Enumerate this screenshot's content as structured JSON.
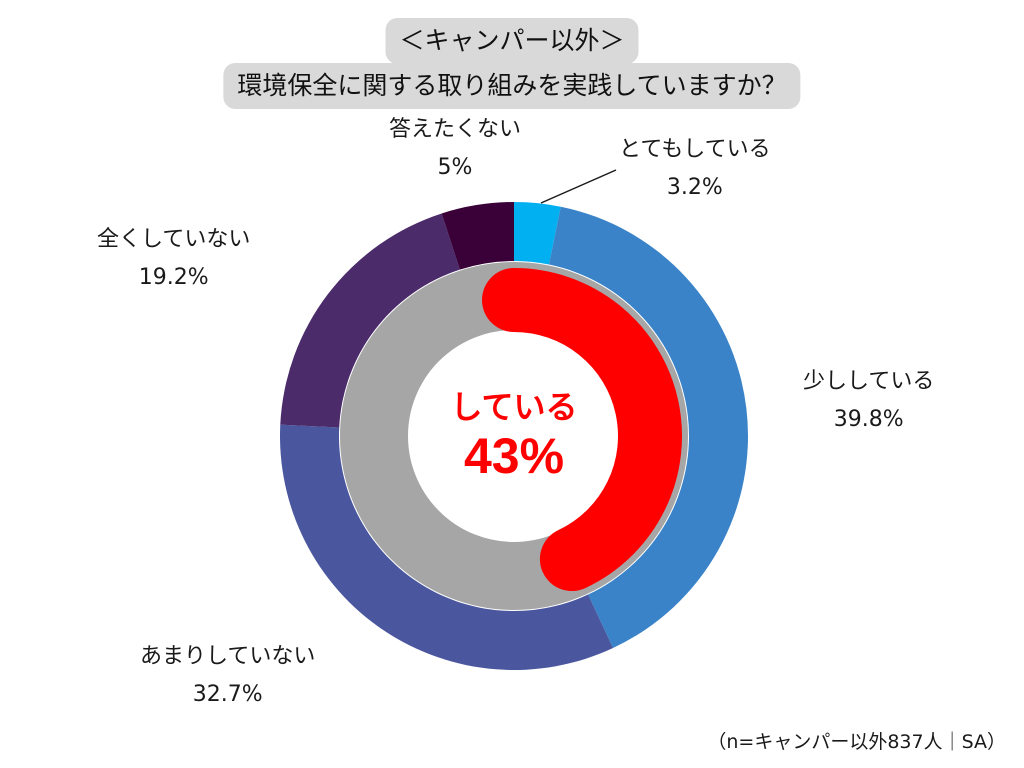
{
  "chart_data": {
    "type": "pie",
    "variant": "nested-donut",
    "title": [
      "＜キャンパー以外＞",
      "環境保全に関する取り組みを実践していますか？"
    ],
    "outer_ring": {
      "categories": [
        "とてもしている",
        "少ししている",
        "あまりしていない",
        "全くしていない",
        "答えたくない"
      ],
      "values": [
        3.2,
        39.8,
        32.7,
        19.2,
        5
      ],
      "labels": [
        "3.2%",
        "39.8%",
        "32.7%",
        "19.2%",
        "5%"
      ],
      "colors": [
        "#00b0f0",
        "#3a83c8",
        "#4a579e",
        "#4b2b6a",
        "#3a0038"
      ]
    },
    "inner_ring": {
      "highlight_label": "している",
      "highlight_value": 43,
      "highlight_text": "43%",
      "highlight_color": "#ff0000",
      "base_color": "#a6a6a6"
    },
    "center_text_color": "#ff0000",
    "footnote": "（n=キャンパー以外837人｜SA）"
  }
}
